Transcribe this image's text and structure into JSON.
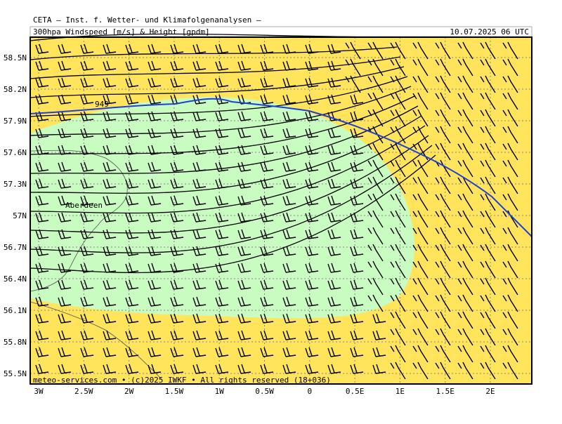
{
  "header": {
    "institute": "CETA – Inst. f. Wetter- und Klimafolgenanalysen –",
    "title": "300hpa Windspeed [m/s] & Height [gpdm]",
    "date": "10.07.2025 06 UTC"
  },
  "map": {
    "lat_labels": [
      "58.5N",
      "58.2N",
      "57.9N",
      "57.6N",
      "57.3N",
      "57N",
      "56.7N",
      "56.4N",
      "56.1N",
      "55.8N",
      "55.5N"
    ],
    "lon_labels": [
      "3W",
      "2.5W",
      "2W",
      "1.5W",
      "1W",
      "0.5W",
      "0",
      "0.5E",
      "1E",
      "1.5E",
      "2E"
    ],
    "city": "Aberdeen",
    "contour_label": "949",
    "footer": "meteo-services.com • (c)2025 IWKF • All rights reserved (18+036)"
  }
}
